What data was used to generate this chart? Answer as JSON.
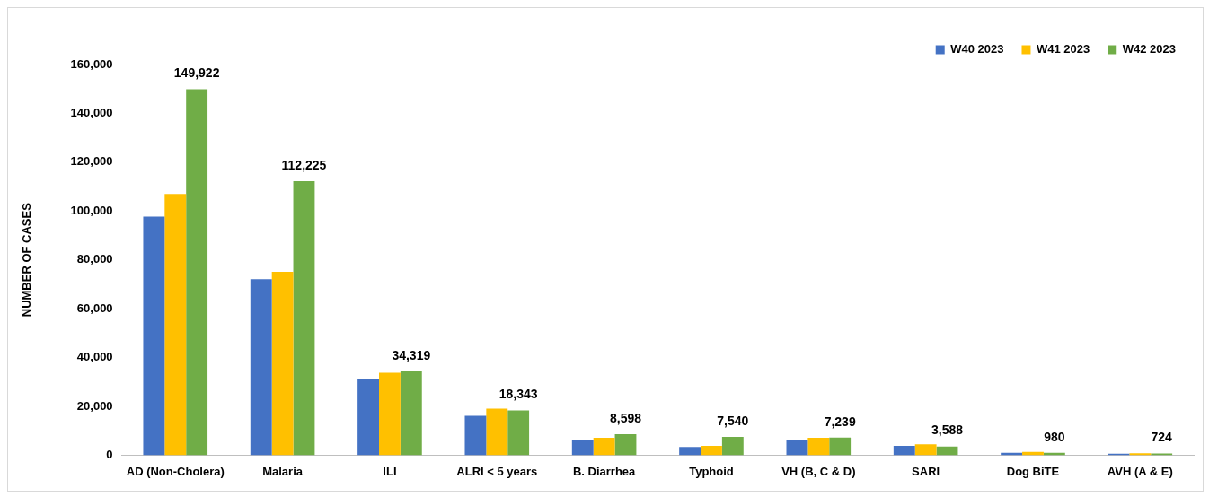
{
  "chart_data": {
    "type": "bar",
    "ylabel": "NUMBER OF CASES",
    "categories": [
      "AD (Non-Cholera)",
      "Malaria",
      "ILI",
      "ALRI < 5 years",
      "B. Diarrhea",
      "Typhoid",
      "VH (B, C & D)",
      "SARI",
      "Dog BiTE",
      "AVH (A & E)"
    ],
    "series": [
      {
        "name": "W40 2023",
        "color": "#4472c4",
        "values": [
          97700,
          72100,
          31200,
          16100,
          6400,
          3400,
          6400,
          3800,
          1000,
          600
        ]
      },
      {
        "name": "W41 2023",
        "color": "#ffc000",
        "values": [
          107000,
          75100,
          33800,
          19100,
          7100,
          3800,
          7100,
          4500,
          1300,
          800
        ]
      },
      {
        "name": "W42 2023",
        "color": "#70ad47",
        "values": [
          149922,
          112225,
          34319,
          18343,
          8598,
          7540,
          7239,
          3588,
          980,
          724
        ],
        "value_labels": [
          "149,922",
          "112,225",
          "34,319",
          "18,343",
          "8,598",
          "7,540",
          "7,239",
          "3,588",
          "980",
          "724"
        ]
      }
    ],
    "ylim": [
      0,
      160000
    ],
    "yticks": [
      {
        "value": 0,
        "label": "0"
      },
      {
        "value": 20000,
        "label": "20,000"
      },
      {
        "value": 40000,
        "label": "40,000"
      },
      {
        "value": 60000,
        "label": "60,000"
      },
      {
        "value": 80000,
        "label": "80,000"
      },
      {
        "value": 100000,
        "label": "100,000"
      },
      {
        "value": 120000,
        "label": "120,000"
      },
      {
        "value": 140000,
        "label": "140,000"
      },
      {
        "value": 160000,
        "label": "160,000"
      }
    ],
    "grid": false,
    "legend": "top right"
  }
}
